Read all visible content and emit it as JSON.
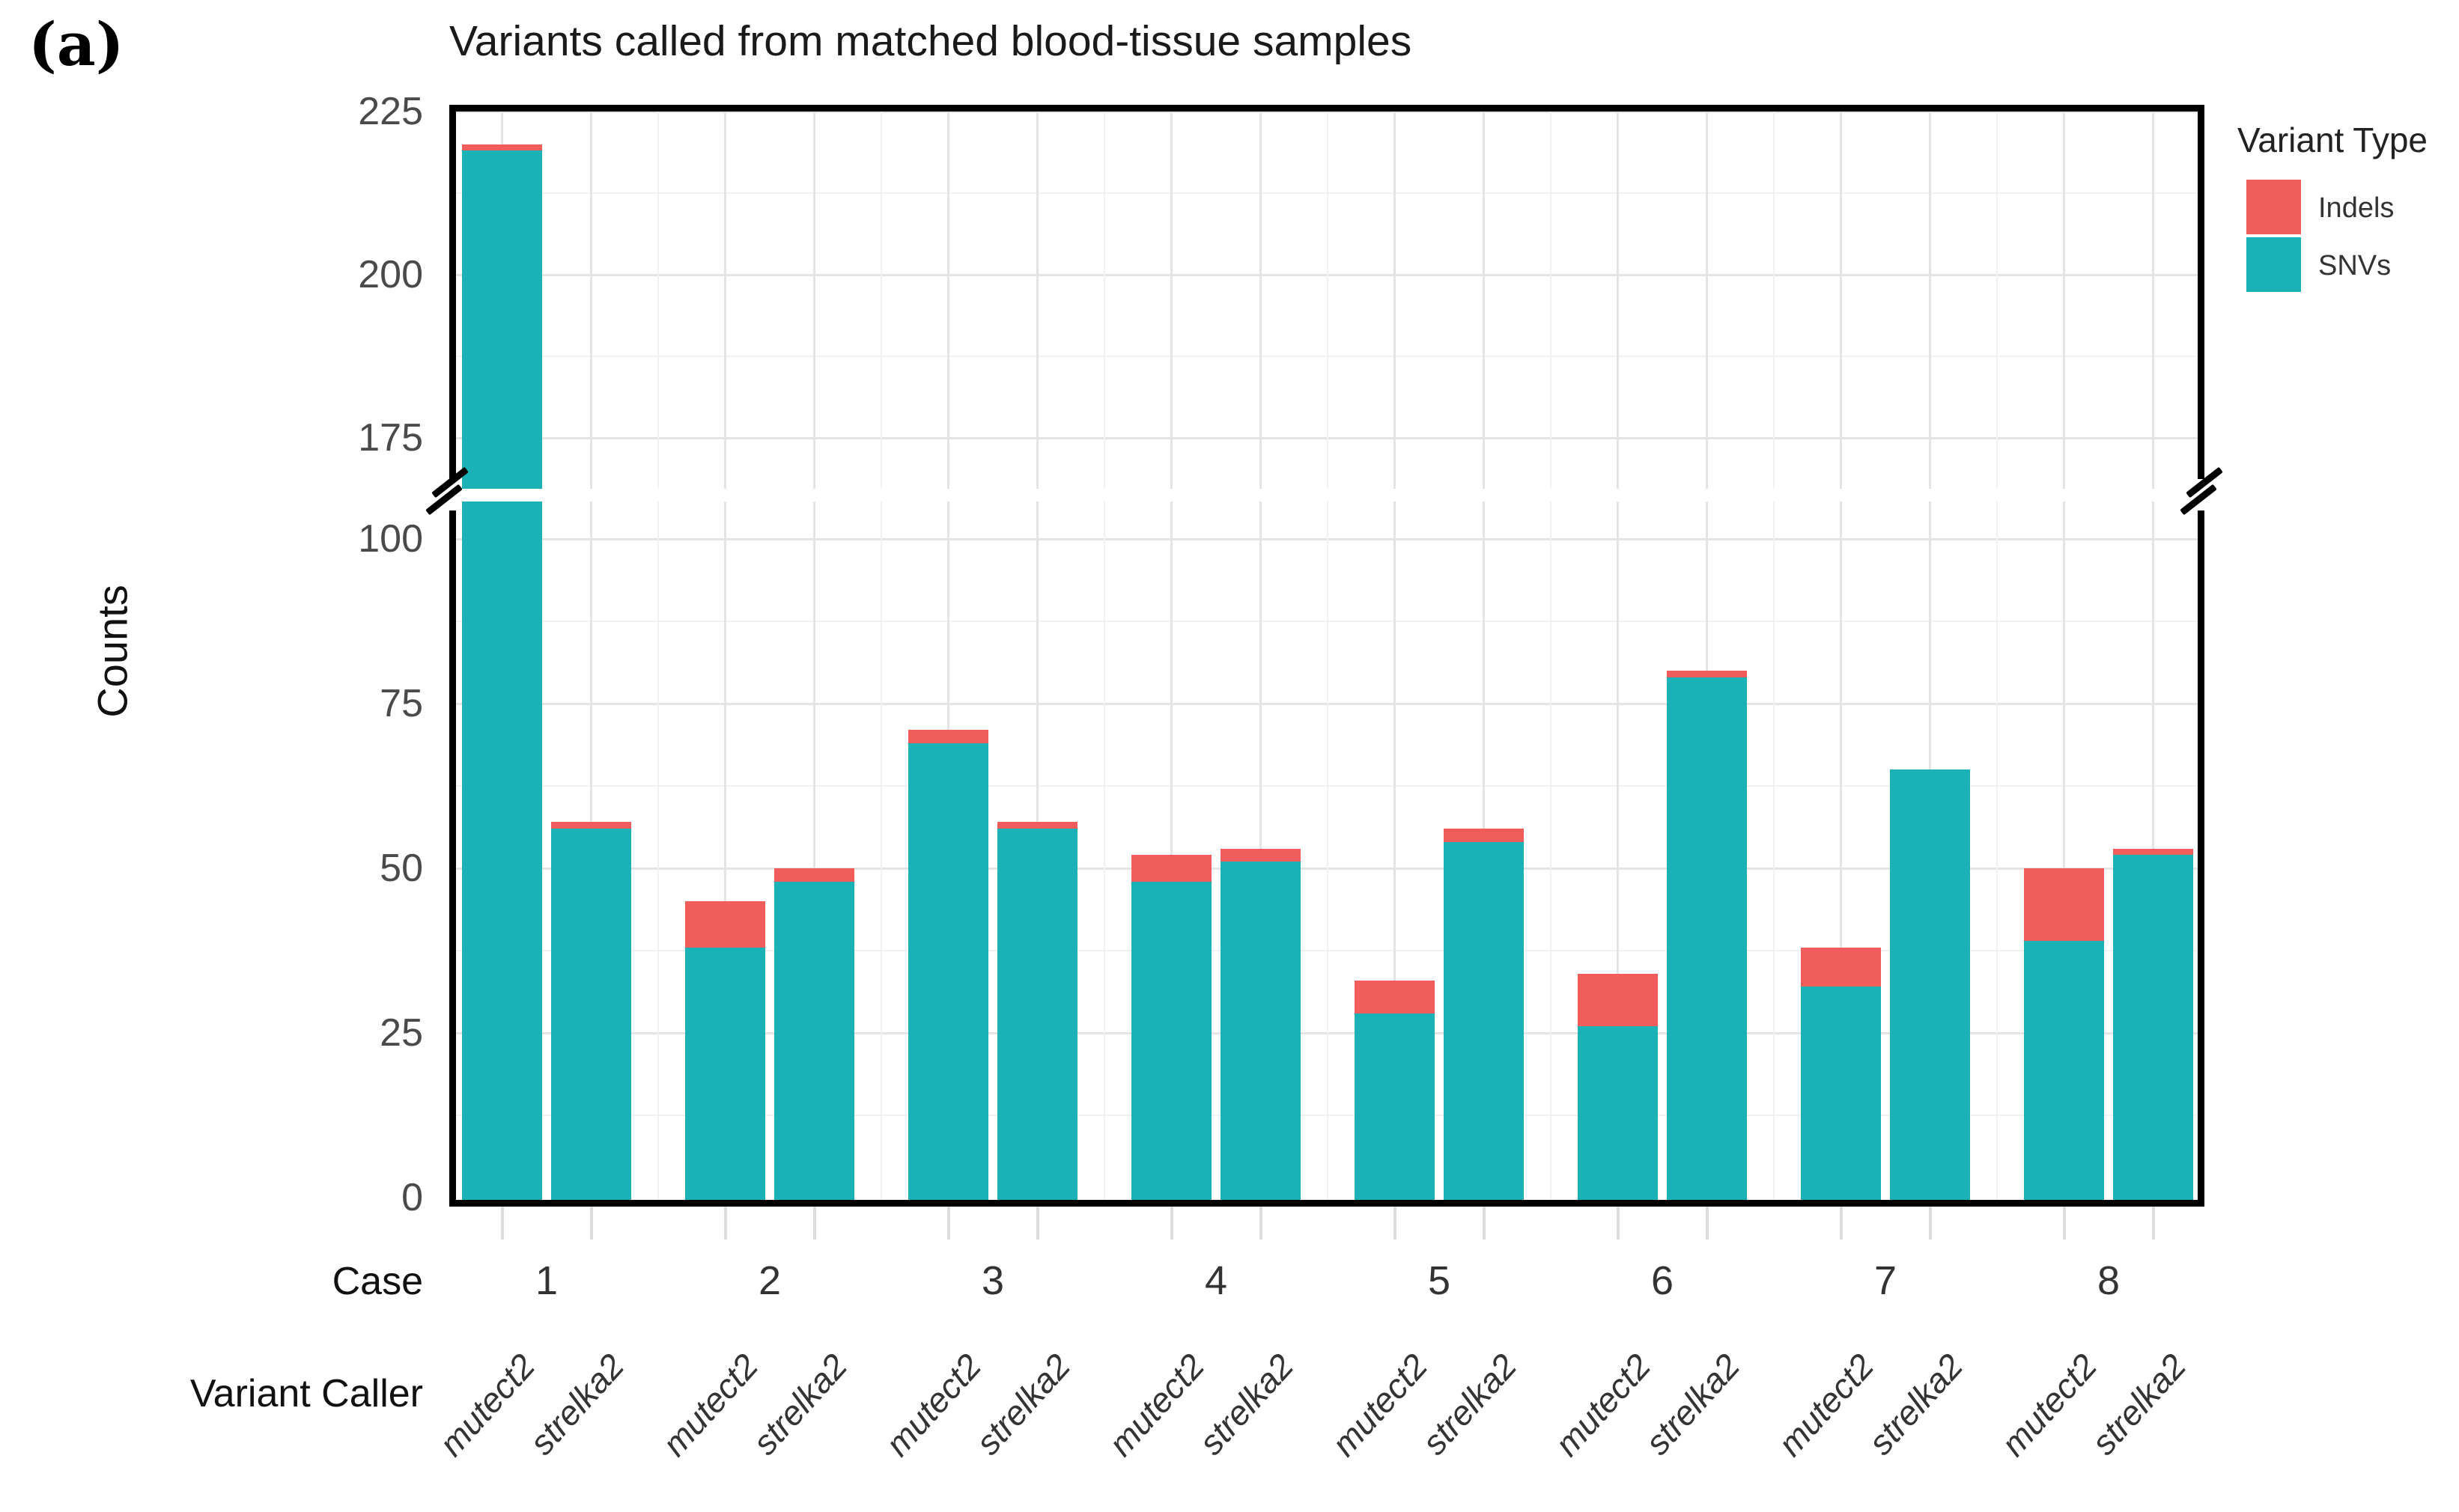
{
  "panel_tag": "(a)",
  "title": "Variants called from matched blood-tissue samples",
  "y_axis": {
    "label": "Counts",
    "lower_ticks": [
      0,
      25,
      50,
      75,
      100
    ],
    "upper_ticks": [
      175,
      200,
      225
    ],
    "break_between": [
      100,
      175
    ]
  },
  "x_axis": {
    "case_label": "Case",
    "caller_label": "Variant Caller",
    "case_numbers": [
      "1",
      "2",
      "3",
      "4",
      "5",
      "6",
      "7",
      "8"
    ],
    "callers_per_case": [
      "mutect2",
      "strelka2"
    ]
  },
  "legend": {
    "title": "Variant Type",
    "items": [
      {
        "label": "Indels",
        "color": "#f15d5b"
      },
      {
        "label": "SNVs",
        "color": "#1ab2b7"
      }
    ]
  },
  "colors": {
    "snv": "#1ab2b7",
    "indel": "#f15d5b",
    "axis": "#000000",
    "grid_major": "#e4e4e4",
    "grid_minor": "#f2f2f2",
    "tick_text": "#4a4a4a"
  },
  "chart_data": {
    "type": "bar",
    "stacked": true,
    "title": "Variants called from matched blood-tissue samples",
    "ylabel": "Counts",
    "xlabel": "Case / Variant Caller",
    "ylim": [
      0,
      230
    ],
    "y_break": [
      105,
      167
    ],
    "grid": true,
    "legend_position": "right",
    "groups": [
      "1",
      "2",
      "3",
      "4",
      "5",
      "6",
      "7",
      "8"
    ],
    "categories": [
      "Case 1 mutect2",
      "Case 1 strelka2",
      "Case 2 mutect2",
      "Case 2 strelka2",
      "Case 3 mutect2",
      "Case 3 strelka2",
      "Case 4 mutect2",
      "Case 4 strelka2",
      "Case 5 mutect2",
      "Case 5 strelka2",
      "Case 6 mutect2",
      "Case 6 strelka2",
      "Case 7 mutect2",
      "Case 7 strelka2",
      "Case 8 mutect2",
      "Case 8 strelka2"
    ],
    "series": [
      {
        "name": "SNVs",
        "color": "#1ab2b7",
        "values": [
          219,
          56,
          38,
          48,
          69,
          56,
          48,
          51,
          28,
          54,
          26,
          79,
          32,
          65,
          39,
          52
        ]
      },
      {
        "name": "Indels",
        "color": "#f15d5b",
        "values": [
          1,
          1,
          7,
          2,
          2,
          1,
          4,
          2,
          5,
          2,
          8,
          1,
          6,
          0,
          11,
          1
        ]
      }
    ],
    "totals": [
      220,
      57,
      45,
      50,
      71,
      57,
      52,
      53,
      33,
      56,
      34,
      80,
      38,
      65,
      50,
      53
    ]
  }
}
